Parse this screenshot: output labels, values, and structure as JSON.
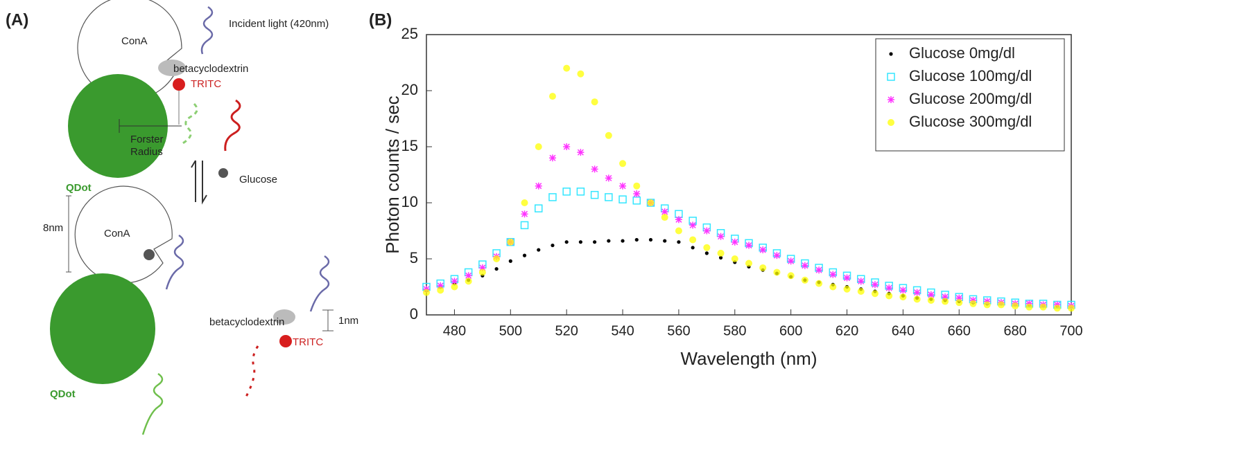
{
  "panel_labels": {
    "a": "(A)",
    "b": "(B)"
  },
  "diagram": {
    "incident_light": "Incident light (420nm)",
    "cona_top": "ConA",
    "beta_top": "betacyclodextrin",
    "tritc_top": "TRITC",
    "forster_radius": [
      "Forster",
      "Radius"
    ],
    "qdot_top": "QDot",
    "glucose": "Glucose",
    "size_8nm": "8nm",
    "cona_bottom": "ConA",
    "qdot_bottom": "QDot",
    "beta_bottom": "betacyclodextrin",
    "size_1nm": "1nm",
    "tritc_bottom": "TRITC"
  },
  "chart_data": {
    "type": "scatter",
    "xlabel": "Wavelength (nm)",
    "ylabel": "Photon counts / sec",
    "x": [
      470,
      475,
      480,
      485,
      490,
      495,
      500,
      505,
      510,
      515,
      520,
      525,
      530,
      535,
      540,
      545,
      550,
      555,
      560,
      565,
      570,
      575,
      580,
      585,
      590,
      595,
      600,
      605,
      610,
      615,
      620,
      625,
      630,
      635,
      640,
      645,
      650,
      655,
      660,
      665,
      670,
      675,
      680,
      685,
      690,
      695,
      700
    ],
    "series": [
      {
        "name": "Glucose 0mg/dl",
        "color": "#000000",
        "marker": "dot",
        "values": [
          2.2,
          2.5,
          2.8,
          3.1,
          3.5,
          4.1,
          4.8,
          5.3,
          5.8,
          6.2,
          6.5,
          6.5,
          6.5,
          6.6,
          6.6,
          6.7,
          6.7,
          6.6,
          6.5,
          6.0,
          5.5,
          5.1,
          4.7,
          4.3,
          4.0,
          3.7,
          3.4,
          3.1,
          2.9,
          2.7,
          2.5,
          2.3,
          2.1,
          1.9,
          1.7,
          1.5,
          1.4,
          1.3,
          1.2,
          1.1,
          1.0,
          1.0,
          0.9,
          0.9,
          0.8,
          0.8,
          0.7
        ]
      },
      {
        "name": "Glucose 100mg/dl",
        "color": "#33e6ff",
        "marker": "square",
        "values": [
          2.5,
          2.8,
          3.2,
          3.8,
          4.5,
          5.5,
          6.5,
          8,
          9.5,
          10.5,
          11,
          11,
          10.7,
          10.5,
          10.3,
          10.2,
          10,
          9.5,
          9,
          8.4,
          7.8,
          7.3,
          6.8,
          6.4,
          6,
          5.5,
          5,
          4.6,
          4.2,
          3.8,
          3.5,
          3.2,
          2.9,
          2.6,
          2.4,
          2.2,
          2,
          1.8,
          1.6,
          1.4,
          1.3,
          1.2,
          1.1,
          1.0,
          1.0,
          0.9,
          0.9
        ]
      },
      {
        "name": "Glucose 200mg/dl",
        "color": "#ff33ff",
        "marker": "star",
        "values": [
          2.3,
          2.6,
          3,
          3.5,
          4.2,
          5.2,
          6.5,
          9,
          11.5,
          14,
          15,
          14.5,
          13,
          12.2,
          11.5,
          10.8,
          10,
          9.2,
          8.5,
          8,
          7.5,
          7,
          6.5,
          6.2,
          5.8,
          5.3,
          4.8,
          4.4,
          4,
          3.6,
          3.3,
          3,
          2.7,
          2.4,
          2.2,
          2,
          1.8,
          1.6,
          1.5,
          1.3,
          1.2,
          1.1,
          1.0,
          1.0,
          0.9,
          0.9,
          0.8
        ]
      },
      {
        "name": "Glucose 300mg/dl",
        "color": "#ffff00",
        "marker": "circle",
        "values": [
          2,
          2.2,
          2.5,
          3,
          3.8,
          5,
          6.5,
          10,
          15,
          19.5,
          22,
          21.5,
          19,
          16,
          13.5,
          11.5,
          10,
          8.7,
          7.5,
          6.7,
          6,
          5.5,
          5,
          4.6,
          4.2,
          3.8,
          3.5,
          3.1,
          2.8,
          2.5,
          2.3,
          2.1,
          1.9,
          1.7,
          1.6,
          1.4,
          1.3,
          1.2,
          1.1,
          1.0,
          0.9,
          0.9,
          0.8,
          0.7,
          0.7,
          0.6,
          0.6
        ]
      }
    ],
    "xlim": [
      470,
      700
    ],
    "xticks": [
      480,
      500,
      520,
      540,
      560,
      580,
      600,
      620,
      640,
      660,
      680,
      700
    ],
    "ylim": [
      0,
      25
    ],
    "yticks": [
      0,
      5,
      10,
      15,
      20,
      25
    ],
    "legend": "upper right"
  }
}
